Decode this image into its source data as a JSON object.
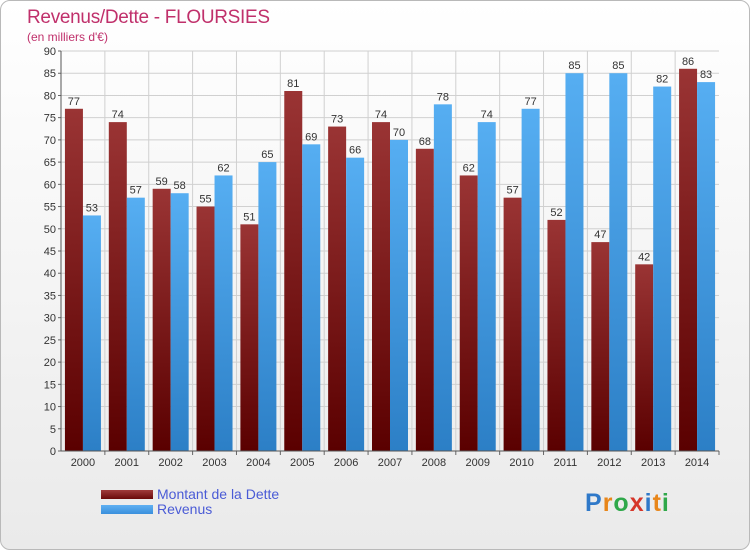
{
  "title": "Revenus/Dette - FLOURSIES",
  "subtitle": "(en milliers d'€)",
  "legend": {
    "debt": "Montant de la Dette",
    "revenue": "Revenus"
  },
  "brand": {
    "name": "Proxiti",
    "letters": [
      "P",
      "r",
      "o",
      "x",
      "i",
      "t",
      "i"
    ],
    "letter_colors": [
      "#2f79c9",
      "#e8861a",
      "#2fa84a",
      "#d6362a",
      "#2f79c9",
      "#e8861a",
      "#2fa84a"
    ]
  },
  "colors": {
    "debt": "#6a0a0a",
    "debt_light": "#a03c3c",
    "revenue": "#3a8fdc",
    "revenue_light": "#5fb0f2",
    "axis_text": "#333333",
    "grid": "#d0d0d0"
  },
  "chart_data": {
    "type": "bar",
    "title": "Revenus/Dette - FLOURSIES",
    "subtitle": "(en milliers d'€)",
    "xlabel": "",
    "ylabel": "",
    "ylim": [
      0,
      90
    ],
    "ytick_step": 5,
    "grid": true,
    "legend_position": "bottom-left",
    "categories": [
      "2000",
      "2001",
      "2002",
      "2003",
      "2004",
      "2005",
      "2006",
      "2007",
      "2008",
      "2009",
      "2010",
      "2011",
      "2012",
      "2013",
      "2014"
    ],
    "series": [
      {
        "name": "Montant de la Dette",
        "values": [
          77,
          74,
          59,
          55,
          51,
          81,
          73,
          74,
          68,
          62,
          57,
          52,
          47,
          42,
          86
        ]
      },
      {
        "name": "Revenus",
        "values": [
          53,
          57,
          58,
          62,
          65,
          69,
          66,
          70,
          78,
          74,
          77,
          85,
          85,
          82,
          83
        ]
      }
    ]
  }
}
